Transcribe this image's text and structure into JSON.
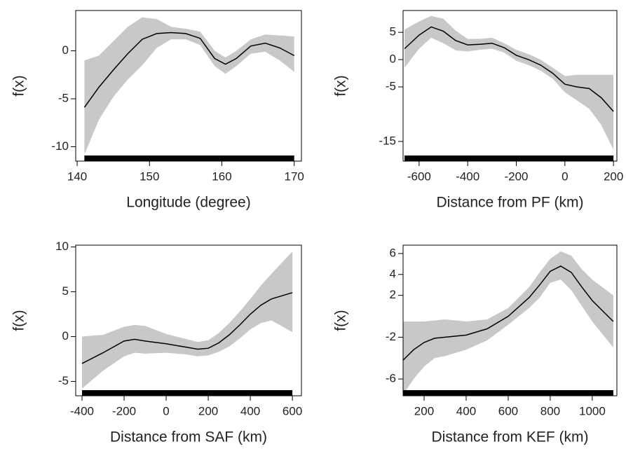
{
  "chart_data": [
    {
      "type": "line",
      "xlabel": "Longitude (degree)",
      "ylabel": "f(x)",
      "xlim": [
        139.8,
        171
      ],
      "ylim": [
        -11.5,
        4.2
      ],
      "xticks": [
        140,
        150,
        160,
        170
      ],
      "yticks": [
        -10,
        -5,
        0
      ],
      "x": [
        141,
        143,
        145,
        147,
        149,
        151,
        153,
        155,
        157,
        159,
        160.5,
        162,
        164,
        166,
        168,
        170
      ],
      "values": [
        -5.9,
        -3.8,
        -2,
        -0.3,
        1.2,
        1.8,
        1.9,
        1.8,
        1.3,
        -0.8,
        -1.4,
        -0.8,
        0.5,
        0.8,
        0.3,
        -0.5
      ],
      "upper": [
        -1,
        -0.5,
        1,
        2.5,
        3.5,
        3.3,
        2.5,
        2.3,
        2,
        0,
        -0.7,
        0,
        1.2,
        1.7,
        1.6,
        1.5
      ],
      "lower": [
        -10.8,
        -7.2,
        -4.8,
        -3,
        -1.5,
        0.3,
        1.2,
        1.2,
        0.6,
        -1.6,
        -2.4,
        -1.6,
        -0.3,
        -0.1,
        -1,
        -2.2
      ],
      "line_color": "#000000",
      "band_color": "#c8c8c8"
    },
    {
      "type": "line",
      "xlabel": "Distance from PF (km)",
      "ylabel": "f(x)",
      "xlim": [
        -666,
        214
      ],
      "ylim": [
        -18.6,
        9
      ],
      "xticks": [
        -600,
        -400,
        -200,
        0,
        200
      ],
      "yticks": [
        -15,
        -5,
        0,
        5
      ],
      "x": [
        -660,
        -600,
        -550,
        -500,
        -450,
        -400,
        -350,
        -300,
        -250,
        -200,
        -150,
        -100,
        -50,
        0,
        50,
        100,
        150,
        200
      ],
      "values": [
        2,
        4.5,
        6,
        5.2,
        3.5,
        2.7,
        2.8,
        3,
        2.2,
        0.8,
        0,
        -1,
        -2.5,
        -4.5,
        -5,
        -5.3,
        -7,
        -9.5
      ],
      "upper": [
        5.5,
        7,
        8,
        7.5,
        5.3,
        3.8,
        3.8,
        4,
        3,
        1.8,
        1,
        0,
        -1.5,
        -3,
        -2.8,
        -2.8,
        -2.8,
        -2.8
      ],
      "lower": [
        -1.5,
        2,
        4,
        3,
        1.7,
        1.5,
        1.8,
        2,
        1.3,
        -0.2,
        -1,
        -2,
        -3.5,
        -6,
        -7.5,
        -9,
        -12,
        -16.5
      ],
      "line_color": "#000000",
      "band_color": "#c8c8c8"
    },
    {
      "type": "line",
      "xlabel": "Distance from SAF (km)",
      "ylabel": "f(x)",
      "xlim": [
        -430,
        643
      ],
      "ylim": [
        -6.6,
        10.2
      ],
      "xticks": [
        -400,
        -200,
        0,
        200,
        400,
        600
      ],
      "yticks": [
        -5,
        0,
        5,
        10
      ],
      "x": [
        -400,
        -300,
        -200,
        -150,
        -100,
        0,
        100,
        150,
        200,
        250,
        300,
        350,
        400,
        450,
        500,
        600
      ],
      "values": [
        -3,
        -1.8,
        -0.5,
        -0.3,
        -0.5,
        -0.8,
        -1.2,
        -1.4,
        -1.3,
        -0.7,
        0.2,
        1.3,
        2.5,
        3.5,
        4.2,
        4.9
      ],
      "upper": [
        0,
        0.2,
        1.1,
        1.3,
        1.2,
        0.3,
        -0.3,
        -0.6,
        -0.4,
        0.4,
        1.5,
        2.8,
        4.2,
        5.7,
        7,
        9.5
      ],
      "lower": [
        -5.8,
        -3.8,
        -2.2,
        -1.8,
        -1.9,
        -1.8,
        -2,
        -2.2,
        -2.1,
        -1.7,
        -1.1,
        -0.2,
        0.8,
        1.5,
        1.8,
        0.5
      ],
      "line_color": "#000000",
      "band_color": "#c8c8c8"
    },
    {
      "type": "line",
      "xlabel": "Distance from KEF (km)",
      "ylabel": "f(x)",
      "xlim": [
        100,
        1117
      ],
      "ylim": [
        -7.6,
        6.8
      ],
      "xticks": [
        200,
        400,
        600,
        800,
        1000
      ],
      "yticks": [
        -6,
        -2,
        2,
        4,
        6
      ],
      "x": [
        100,
        150,
        200,
        250,
        300,
        400,
        500,
        600,
        700,
        750,
        800,
        850,
        900,
        950,
        1000,
        1100
      ],
      "values": [
        -4.2,
        -3.2,
        -2.5,
        -2.1,
        -2,
        -1.8,
        -1.2,
        0,
        1.8,
        3,
        4.3,
        4.8,
        4.2,
        2.8,
        1.5,
        -0.5
      ],
      "upper": [
        -0.5,
        -0.5,
        -0.5,
        -0.4,
        -0.3,
        -0.5,
        -0.3,
        0.8,
        2.8,
        4.2,
        5.5,
        6.2,
        5.8,
        4.5,
        3.5,
        2
      ],
      "lower": [
        -7.5,
        -6,
        -4.8,
        -4,
        -3.8,
        -3.2,
        -2.3,
        -0.8,
        0.8,
        1.8,
        3.2,
        3.5,
        2.5,
        1,
        -0.5,
        -3
      ],
      "line_color": "#000000",
      "band_color": "#c8c8c8"
    }
  ]
}
